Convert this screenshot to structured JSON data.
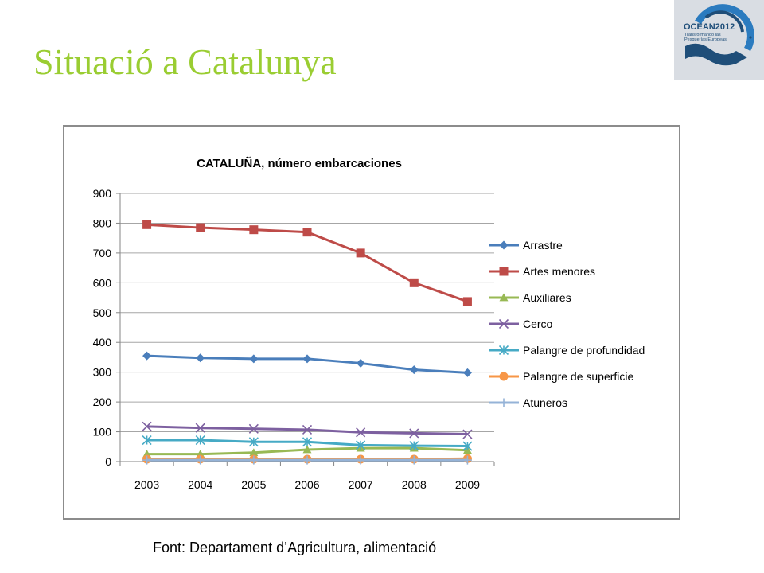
{
  "slide": {
    "title": "Situació a Catalunya",
    "source": "Font: Departament d’Agricultura, alimentació"
  },
  "logo": {
    "line1": "OCEAN2012",
    "line2": "Transformando las",
    "line3": "Pesquerías Europeas",
    "colors": {
      "navy": "#1f4e79",
      "blue": "#2b7bbf",
      "background": "#d9dde3"
    }
  },
  "chart_data": {
    "type": "line",
    "title": "CATALUÑA, número embarcaciones",
    "xlabel": "",
    "ylabel": "",
    "x": [
      "2003",
      "2004",
      "2005",
      "2006",
      "2007",
      "2008",
      "2009"
    ],
    "ylim": [
      0,
      900
    ],
    "yticks": [
      0,
      100,
      200,
      300,
      400,
      500,
      600,
      700,
      800,
      900
    ],
    "grid": true,
    "legend_position": "right",
    "series": [
      {
        "name": "Arrastre",
        "color": "#4a7ebb",
        "marker": "diamond",
        "values": [
          355,
          348,
          345,
          345,
          330,
          308,
          298
        ]
      },
      {
        "name": "Artes menores",
        "color": "#be4b48",
        "marker": "square",
        "values": [
          795,
          785,
          778,
          770,
          700,
          600,
          537
        ]
      },
      {
        "name": "Auxiliares",
        "color": "#98b954",
        "marker": "triangle",
        "values": [
          25,
          25,
          30,
          40,
          45,
          45,
          38
        ]
      },
      {
        "name": "Cerco",
        "color": "#7d60a0",
        "marker": "x",
        "values": [
          118,
          113,
          110,
          107,
          98,
          95,
          92
        ]
      },
      {
        "name": "Palangre de profundidad",
        "color": "#46aac5",
        "marker": "asterisk",
        "values": [
          72,
          72,
          66,
          66,
          55,
          53,
          52
        ]
      },
      {
        "name": "Palangre de superficie",
        "color": "#f79646",
        "marker": "circle",
        "values": [
          8,
          8,
          8,
          8,
          8,
          8,
          10
        ]
      },
      {
        "name": "Atuneros",
        "color": "#95b3d7",
        "marker": "plus",
        "values": [
          5,
          5,
          5,
          5,
          5,
          5,
          5
        ]
      }
    ]
  }
}
